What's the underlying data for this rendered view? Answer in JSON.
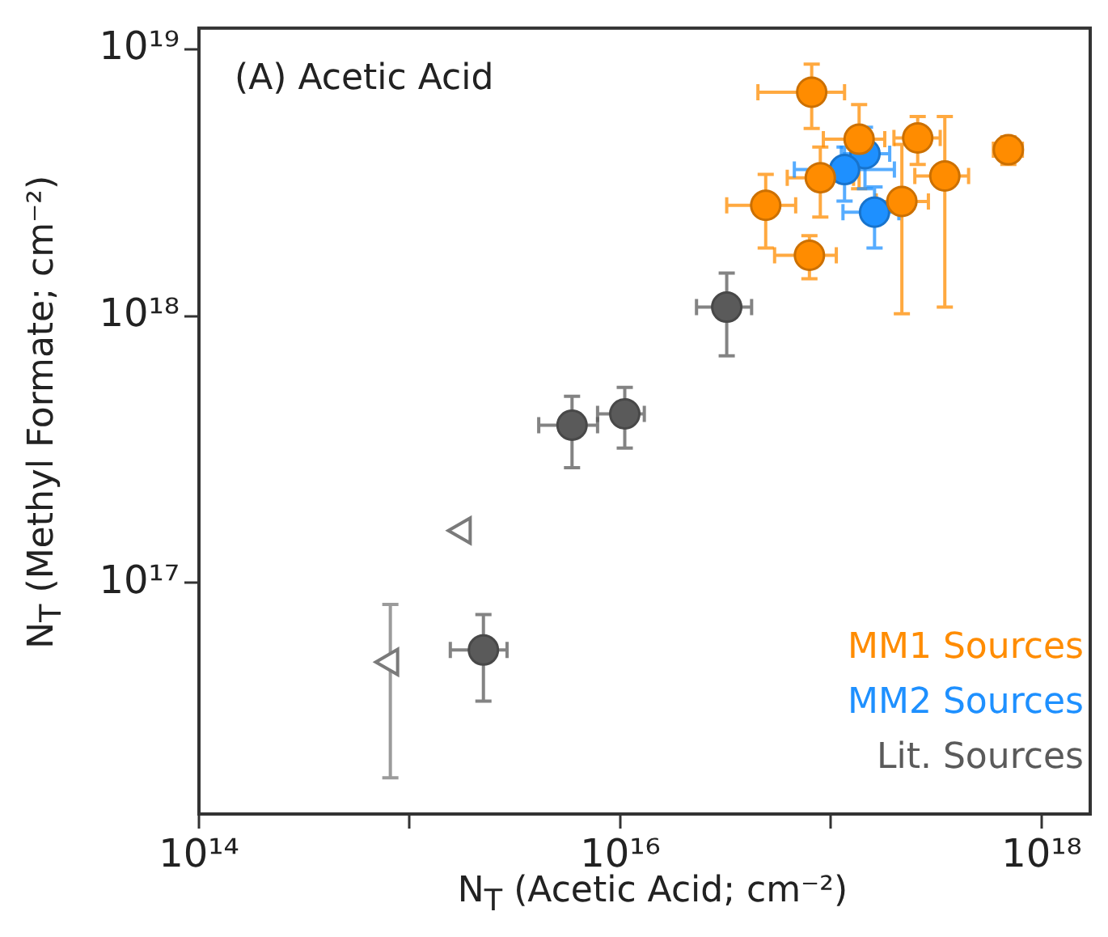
{
  "chart_data": {
    "type": "scatter",
    "xlabel": "N$_{T}$ (Acetic Acid; cm⁻²)",
    "ylabel": "N$_{T}$ (Methyl Formate; cm⁻²)",
    "annotations": [
      "(A) Acetic Acid"
    ],
    "log": "xy",
    "grid": false,
    "legend": "bottom right",
    "marker": "circle",
    "xlim": [
      100000000000000.0,
      1.7e+18
    ],
    "ylim": [
      1.36e+16,
      1.2e+19
    ],
    "xticks": [
      {
        "value": 100000000000000.0,
        "label": "10¹⁴"
      },
      {
        "value": 1000000000000000.0,
        "label": null
      },
      {
        "value": 1e+16,
        "label": "10¹⁶"
      },
      {
        "value": 1e+17,
        "label": null
      },
      {
        "value": 1e+18,
        "label": "10¹⁸"
      }
    ],
    "yticks": [
      {
        "value": 1e+17,
        "label": "10¹⁷"
      },
      {
        "value": 1e+18,
        "label": "10¹⁸"
      },
      {
        "value": 1e+19,
        "label": "10¹⁹"
      }
    ],
    "series": [
      {
        "name": "MM1 Sources",
        "color": "#ff8c00",
        "x": [
          8.1e+16,
          1.36e+17,
          2.58e+17,
          6.95e+17,
          3.47e+17,
          2.17e+17,
          8.9e+16,
          4.9e+16,
          7.9e+16
        ],
        "values": [
          6.9e+18,
          4.6e+18,
          4.65e+18,
          4.2e+18,
          3.35e+18,
          2.69e+18,
          3.3e+18,
          2.6e+18,
          1.69e+18
        ],
        "xerrors": [
          [
            4.5e+16,
            1.16e+17
          ],
          [
            9.2e+16,
            1.8e+17
          ],
          [
            1.99e+17,
            3.3e+17
          ],
          [
            5.9e+17,
            8.1e+17
          ],
          [
            2.5e+17,
            4.5e+17
          ],
          [
            1.64e+17,
            2.9e+17
          ],
          [
            6.2e+16,
            1.28e+17
          ],
          [
            3.2e+16,
            6.8e+16
          ],
          [
            5.4e+16,
            1.06e+17
          ]
        ],
        "errors": [
          [
            5.05e+18,
            8.8e+18
          ],
          [
            3e+18,
            6.2e+18
          ],
          [
            3.7e+18,
            5.6e+18
          ],
          [
            3.7e+18,
            4.7e+18
          ],
          [
            1.08e+18,
            5.6e+18
          ],
          [
            1.02e+18,
            4.4e+18
          ],
          [
            2.35e+18,
            4.3e+18
          ],
          [
            1.8e+18,
            3.4e+18
          ],
          [
            1.38e+18,
            2e+18
          ]
        ]
      },
      {
        "name": "MM2 Sources",
        "color": "#1e90ff",
        "x": [
          1.45e+17,
          1.16e+17,
          1.61e+17
        ],
        "values": [
          4.06e+18,
          3.54e+18,
          2.45e+18
        ],
        "xerrors": [
          [
            1.12e+17,
            1.9e+17
          ],
          [
            6.7e+16,
            2e+17
          ],
          [
            1.14e+17,
            2.1e+17
          ]
        ],
        "errors": [
          [
            3e+18,
            5.1e+18
          ],
          [
            2.7e+18,
            4.3e+18
          ],
          [
            1.8e+18,
            3.05e+18
          ]
        ]
      },
      {
        "name": "Lit. Sources",
        "color": "#5a5a5a",
        "x": [
          3.2e+16,
          5900000000000000.0,
          1.05e+16,
          2240000000000000.0
        ],
        "values": [
          1.08e+18,
          3.9e+17,
          4.3e+17,
          5.6e+16
        ],
        "xerrors": [
          [
            2.3e+16,
            4.2e+16
          ],
          [
            4100000000000000.0,
            7800000000000000.0
          ],
          [
            7800000000000000.0,
            1.3e+16
          ],
          [
            1560000000000000.0,
            2900000000000000.0
          ]
        ],
        "errors": [
          [
            7.1e+17,
            1.45e+18
          ],
          [
            2.7e+17,
            5e+17
          ],
          [
            3.2e+17,
            5.4e+17
          ],
          [
            3.6e+16,
            7.6e+16
          ]
        ]
      },
      {
        "color": "#7a7a7a",
        "marker": "triangle",
        "x": [
          1790000000000000.0,
          810000000000000.0
        ],
        "values": [
          1.57e+17,
          5.05e+16
        ],
        "errors": [
          null,
          [
            1.86e+16,
            8.3e+16
          ]
        ]
      }
    ]
  }
}
